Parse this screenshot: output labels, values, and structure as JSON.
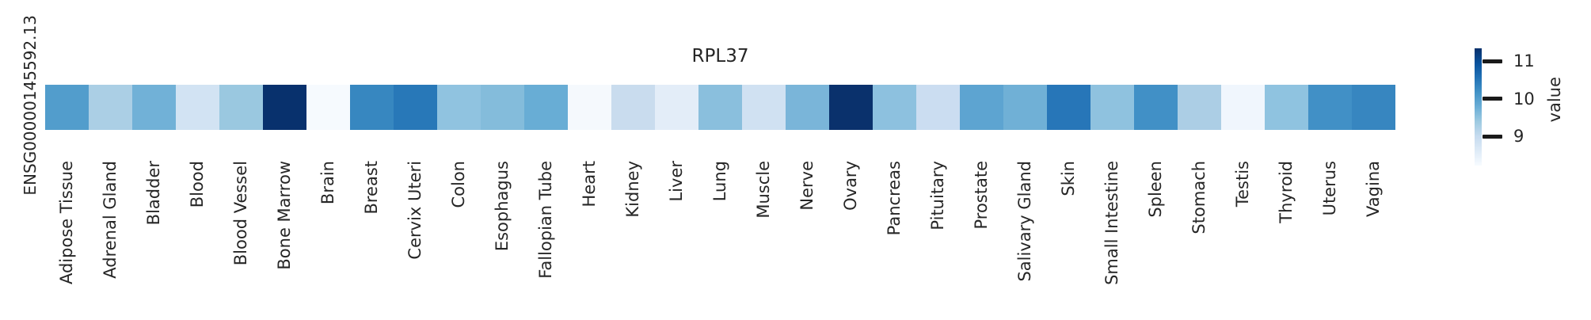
{
  "figure": {
    "background": "#ffffff",
    "text_color": "#262626"
  },
  "chart_data": {
    "type": "heatmap",
    "title": "RPL37",
    "row_labels": [
      "ENSG00000145592.13"
    ],
    "categories": [
      "Adipose Tissue",
      "Adrenal Gland",
      "Bladder",
      "Blood",
      "Blood Vessel",
      "Bone Marrow",
      "Brain",
      "Breast",
      "Cervix Uteri",
      "Colon",
      "Esophagus",
      "Fallopian Tube",
      "Heart",
      "Kidney",
      "Liver",
      "Lung",
      "Muscle",
      "Nerve",
      "Ovary",
      "Pancreas",
      "Pituitary",
      "Prostate",
      "Salivary Gland",
      "Skin",
      "Small Intestine",
      "Spleen",
      "Stomach",
      "Testis",
      "Thyroid",
      "Uterus",
      "Vagina"
    ],
    "series": [
      {
        "name": "ENSG00000145592.13",
        "values": [
          10.0,
          9.3,
          9.8,
          8.8,
          9.4,
          11.3,
          8.3,
          10.3,
          10.5,
          9.5,
          9.6,
          9.8,
          8.3,
          9.0,
          8.6,
          9.6,
          8.9,
          9.7,
          11.2,
          9.5,
          9.0,
          9.9,
          9.8,
          10.5,
          9.5,
          10.2,
          9.3,
          8.4,
          9.5,
          10.2,
          10.3
        ]
      }
    ],
    "cell_colors": [
      "#529dcc",
      "#abcfe5",
      "#71b1d7",
      "#d2e3f3",
      "#9ac8e0",
      "#08316d",
      "#f6fafe",
      "#3787c0",
      "#2878b8",
      "#90c3e0",
      "#84bcdb",
      "#68add5",
      "#f5f9fd",
      "#c9dcee",
      "#e3edf8",
      "#8abfdd",
      "#d0e1f2",
      "#7ab5d9",
      "#0a316c",
      "#8dc1df",
      "#cbddf1",
      "#5da4d1",
      "#70b0d6",
      "#2776b8",
      "#8fc2df",
      "#4190c6",
      "#accee5",
      "#f0f6fd",
      "#8fc3e0",
      "#4190c6",
      "#3786c0"
    ],
    "colorbar": {
      "label": "value",
      "tick_labels": [
        "11",
        "10",
        "9"
      ],
      "tick_values": [
        11,
        10,
        9
      ],
      "vmin": 8.3,
      "vmax": 11.3,
      "colormap": "Blues",
      "position": "right",
      "gradient_stops_top_to_bottom": [
        "#08306b",
        "#08519c",
        "#2171b5",
        "#4292c6",
        "#6baed6",
        "#9ecae1",
        "#c6dbef",
        "#deebf7",
        "#f7fbff"
      ]
    },
    "grid": false,
    "legend": null
  }
}
